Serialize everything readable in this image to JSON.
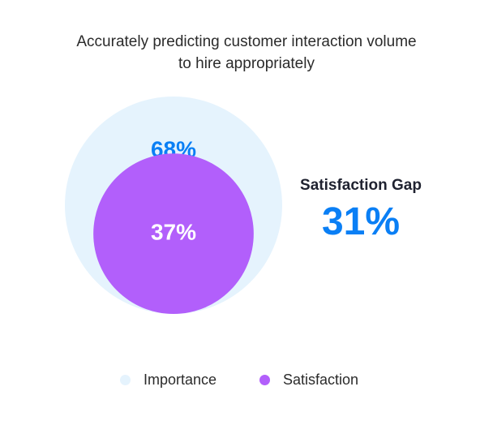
{
  "chart_data": {
    "type": "nested-bubble",
    "title": "Accurately predicting customer interaction volume to hire appropriately",
    "title_lines": [
      "Accurately predicting customer interaction volume",
      "to hire appropriately"
    ],
    "series": [
      {
        "name": "Importance",
        "value": 68,
        "label": "68%",
        "color": "#e5f3fd",
        "label_color": "#0a7ff5"
      },
      {
        "name": "Satisfaction",
        "value": 37,
        "label": "37%",
        "color": "#b25ffb",
        "label_color": "#ffffff"
      }
    ],
    "gap": {
      "label": "Satisfaction Gap",
      "value": 31,
      "display": "31%"
    }
  },
  "legend": {
    "items": [
      {
        "name": "Importance",
        "color": "#e5f3fd"
      },
      {
        "name": "Satisfaction",
        "color": "#b25ffb"
      }
    ]
  }
}
